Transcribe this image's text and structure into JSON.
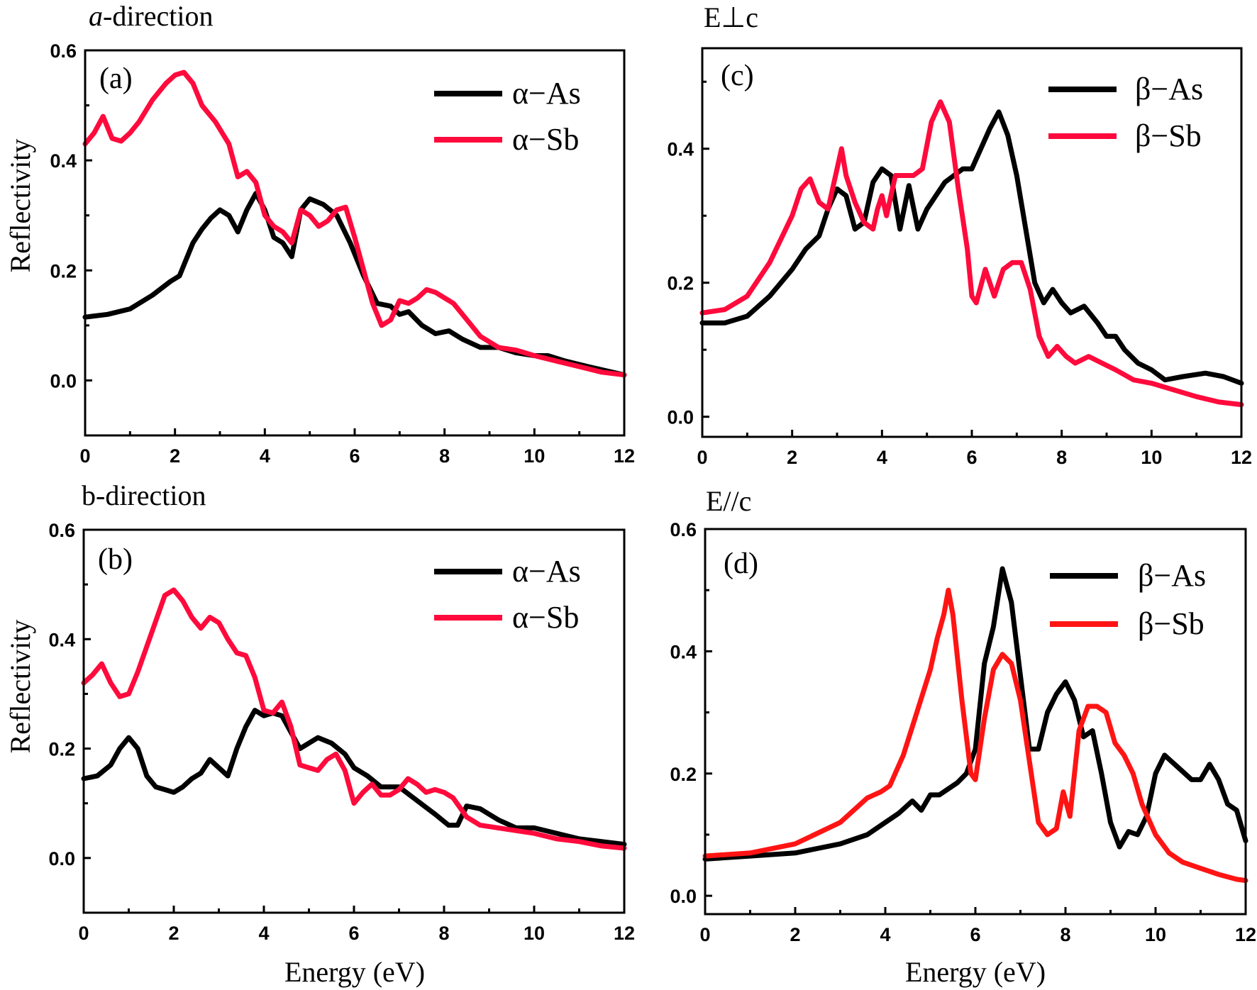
{
  "colors": {
    "black_series": "#000000",
    "red_series": "#ff0a3c",
    "red_series_d": "#ff1414"
  },
  "chart_data": [
    {
      "panel": "a",
      "type": "line",
      "title": "a-direction",
      "title_italic_prefix": "a",
      "title_rest": "-direction",
      "letter": "(a)",
      "xlabel": "",
      "ylabel": "Reflectivity",
      "xlim": [
        0,
        12
      ],
      "ylim": [
        -0.1,
        0.6
      ],
      "xticks": [
        0,
        2,
        4,
        6,
        8,
        10,
        12
      ],
      "yticks": [
        0.0,
        0.2,
        0.4,
        0.6
      ],
      "ytick_labels": [
        "0.0",
        "0.2",
        "0.4",
        "0.6"
      ],
      "legend": [
        "α−As",
        "α−Sb"
      ],
      "series": [
        {
          "name": "α−As",
          "color": "#000000",
          "x": [
            0,
            0.5,
            1,
            1.5,
            1.9,
            2.1,
            2.4,
            2.6,
            2.8,
            3.0,
            3.2,
            3.4,
            3.6,
            3.8,
            4.0,
            4.2,
            4.4,
            4.6,
            4.8,
            5.0,
            5.3,
            5.6,
            5.9,
            6.2,
            6.5,
            6.8,
            7.0,
            7.2,
            7.5,
            7.8,
            8.1,
            8.4,
            8.8,
            9.2,
            9.6,
            10,
            10.3,
            10.7,
            11.2,
            12
          ],
          "y": [
            0.115,
            0.12,
            0.13,
            0.155,
            0.18,
            0.19,
            0.25,
            0.275,
            0.295,
            0.31,
            0.3,
            0.27,
            0.31,
            0.34,
            0.31,
            0.26,
            0.25,
            0.225,
            0.31,
            0.33,
            0.32,
            0.3,
            0.25,
            0.19,
            0.14,
            0.135,
            0.12,
            0.125,
            0.1,
            0.085,
            0.09,
            0.075,
            0.06,
            0.06,
            0.05,
            0.045,
            0.045,
            0.035,
            0.025,
            0.01
          ]
        },
        {
          "name": "α−Sb",
          "color": "#ff0a3c",
          "x": [
            0,
            0.2,
            0.4,
            0.6,
            0.8,
            1.0,
            1.2,
            1.5,
            1.8,
            2.0,
            2.2,
            2.4,
            2.6,
            2.9,
            3.2,
            3.4,
            3.6,
            3.8,
            4.0,
            4.2,
            4.4,
            4.6,
            4.8,
            5.0,
            5.2,
            5.4,
            5.6,
            5.8,
            6.0,
            6.2,
            6.4,
            6.6,
            6.8,
            7.0,
            7.2,
            7.4,
            7.6,
            7.8,
            8.0,
            8.2,
            8.5,
            8.8,
            9.2,
            9.6,
            10,
            10.5,
            11,
            11.5,
            12
          ],
          "y": [
            0.43,
            0.45,
            0.48,
            0.44,
            0.435,
            0.45,
            0.47,
            0.51,
            0.54,
            0.555,
            0.56,
            0.54,
            0.5,
            0.47,
            0.43,
            0.37,
            0.38,
            0.36,
            0.3,
            0.28,
            0.27,
            0.25,
            0.31,
            0.3,
            0.28,
            0.29,
            0.31,
            0.315,
            0.26,
            0.2,
            0.14,
            0.1,
            0.11,
            0.145,
            0.14,
            0.15,
            0.165,
            0.16,
            0.15,
            0.14,
            0.11,
            0.08,
            0.06,
            0.055,
            0.045,
            0.035,
            0.025,
            0.015,
            0.01
          ]
        }
      ]
    },
    {
      "panel": "b",
      "type": "line",
      "title": "b-direction",
      "letter": "(b)",
      "xlabel": "Energy (eV)",
      "ylabel": "Reflectivity",
      "xlim": [
        0,
        12
      ],
      "ylim": [
        -0.1,
        0.6
      ],
      "xticks": [
        0,
        2,
        4,
        6,
        8,
        10,
        12
      ],
      "yticks": [
        0.0,
        0.2,
        0.4,
        0.6
      ],
      "ytick_labels": [
        "0.0",
        "0.2",
        "0.4",
        "0.6"
      ],
      "legend": [
        "α−As",
        "α−Sb"
      ],
      "series": [
        {
          "name": "α−As",
          "color": "#000000",
          "x": [
            0,
            0.3,
            0.6,
            0.8,
            1.0,
            1.2,
            1.4,
            1.6,
            1.8,
            2.0,
            2.2,
            2.4,
            2.6,
            2.8,
            3.0,
            3.2,
            3.4,
            3.6,
            3.8,
            4.0,
            4.2,
            4.4,
            4.6,
            4.8,
            5.0,
            5.2,
            5.5,
            5.8,
            6.0,
            6.3,
            6.6,
            7.0,
            7.4,
            7.8,
            8.1,
            8.3,
            8.5,
            8.8,
            9.2,
            9.6,
            10,
            10.5,
            11,
            11.5,
            12
          ],
          "y": [
            0.145,
            0.15,
            0.17,
            0.2,
            0.22,
            0.2,
            0.15,
            0.13,
            0.125,
            0.12,
            0.13,
            0.145,
            0.155,
            0.18,
            0.165,
            0.15,
            0.2,
            0.24,
            0.27,
            0.26,
            0.265,
            0.26,
            0.23,
            0.2,
            0.21,
            0.22,
            0.21,
            0.19,
            0.165,
            0.15,
            0.13,
            0.13,
            0.105,
            0.08,
            0.06,
            0.06,
            0.095,
            0.09,
            0.07,
            0.055,
            0.055,
            0.045,
            0.035,
            0.03,
            0.025
          ]
        },
        {
          "name": "α−Sb",
          "color": "#ff0a3c",
          "x": [
            0,
            0.2,
            0.4,
            0.6,
            0.8,
            1.0,
            1.2,
            1.5,
            1.8,
            2.0,
            2.2,
            2.4,
            2.6,
            2.8,
            3.0,
            3.2,
            3.4,
            3.6,
            3.8,
            4.0,
            4.2,
            4.4,
            4.6,
            4.8,
            5.0,
            5.2,
            5.4,
            5.6,
            5.8,
            6.0,
            6.2,
            6.4,
            6.6,
            6.8,
            7.0,
            7.2,
            7.4,
            7.6,
            7.8,
            8.0,
            8.2,
            8.5,
            8.8,
            9.2,
            9.6,
            10,
            10.5,
            11,
            11.5,
            12
          ],
          "y": [
            0.32,
            0.335,
            0.355,
            0.32,
            0.295,
            0.3,
            0.34,
            0.41,
            0.48,
            0.49,
            0.47,
            0.44,
            0.42,
            0.44,
            0.43,
            0.4,
            0.375,
            0.37,
            0.33,
            0.27,
            0.265,
            0.285,
            0.24,
            0.17,
            0.165,
            0.16,
            0.18,
            0.19,
            0.16,
            0.1,
            0.12,
            0.135,
            0.115,
            0.115,
            0.125,
            0.145,
            0.135,
            0.12,
            0.125,
            0.12,
            0.11,
            0.075,
            0.06,
            0.055,
            0.05,
            0.045,
            0.035,
            0.03,
            0.022,
            0.018
          ]
        }
      ]
    },
    {
      "panel": "c",
      "type": "line",
      "title": "E⊥c",
      "letter": "(c)",
      "xlabel": "",
      "ylabel": "",
      "xlim": [
        0,
        12
      ],
      "ylim": [
        -0.03,
        0.55
      ],
      "xticks": [
        0,
        2,
        4,
        6,
        8,
        10,
        12
      ],
      "yticks": [
        0.0,
        0.2,
        0.4
      ],
      "ytick_labels": [
        "0.0",
        "0.2",
        "0.4"
      ],
      "legend": [
        "β−As",
        "β−Sb"
      ],
      "series": [
        {
          "name": "β−As",
          "color": "#000000",
          "x": [
            0,
            0.5,
            1,
            1.5,
            2.0,
            2.3,
            2.6,
            2.8,
            3.0,
            3.2,
            3.4,
            3.6,
            3.8,
            4.0,
            4.2,
            4.4,
            4.6,
            4.8,
            5.0,
            5.2,
            5.4,
            5.6,
            5.8,
            6.0,
            6.2,
            6.4,
            6.6,
            6.8,
            7.0,
            7.2,
            7.4,
            7.6,
            7.8,
            8.0,
            8.2,
            8.5,
            8.8,
            9.0,
            9.2,
            9.4,
            9.7,
            10,
            10.3,
            10.7,
            11.2,
            11.6,
            12
          ],
          "y": [
            0.14,
            0.14,
            0.15,
            0.18,
            0.22,
            0.25,
            0.27,
            0.31,
            0.34,
            0.33,
            0.28,
            0.29,
            0.35,
            0.37,
            0.36,
            0.28,
            0.345,
            0.28,
            0.31,
            0.33,
            0.35,
            0.36,
            0.37,
            0.37,
            0.4,
            0.43,
            0.455,
            0.42,
            0.36,
            0.28,
            0.2,
            0.17,
            0.19,
            0.17,
            0.155,
            0.165,
            0.14,
            0.12,
            0.12,
            0.1,
            0.08,
            0.07,
            0.055,
            0.06,
            0.065,
            0.06,
            0.05
          ]
        },
        {
          "name": "β−Sb",
          "color": "#ff0a3c",
          "x": [
            0,
            0.5,
            1,
            1.5,
            2.0,
            2.2,
            2.4,
            2.6,
            2.8,
            3.0,
            3.1,
            3.2,
            3.4,
            3.6,
            3.8,
            3.9,
            4.0,
            4.1,
            4.2,
            4.3,
            4.5,
            4.7,
            4.9,
            5.1,
            5.3,
            5.5,
            5.7,
            5.9,
            6.0,
            6.1,
            6.3,
            6.5,
            6.7,
            6.9,
            7.1,
            7.3,
            7.5,
            7.7,
            7.9,
            8.1,
            8.3,
            8.6,
            8.9,
            9.2,
            9.6,
            10,
            10.5,
            11,
            11.5,
            12
          ],
          "y": [
            0.155,
            0.16,
            0.18,
            0.23,
            0.3,
            0.34,
            0.355,
            0.32,
            0.31,
            0.37,
            0.4,
            0.36,
            0.32,
            0.29,
            0.28,
            0.31,
            0.33,
            0.3,
            0.33,
            0.36,
            0.36,
            0.36,
            0.37,
            0.44,
            0.47,
            0.44,
            0.34,
            0.25,
            0.18,
            0.17,
            0.22,
            0.18,
            0.22,
            0.23,
            0.23,
            0.19,
            0.12,
            0.09,
            0.105,
            0.09,
            0.08,
            0.09,
            0.08,
            0.07,
            0.055,
            0.05,
            0.04,
            0.03,
            0.022,
            0.018
          ]
        }
      ]
    },
    {
      "panel": "d",
      "type": "line",
      "title": "E//c",
      "letter": "(d)",
      "xlabel": "Energy (eV)",
      "ylabel": "",
      "xlim": [
        0,
        12
      ],
      "ylim": [
        -0.03,
        0.6
      ],
      "xticks": [
        0,
        2,
        4,
        6,
        8,
        10,
        12
      ],
      "yticks": [
        0.0,
        0.2,
        0.4,
        0.6
      ],
      "ytick_labels": [
        "0.0",
        "0.2",
        "0.4",
        "0.6"
      ],
      "legend": [
        "β−As",
        "β−Sb"
      ],
      "series": [
        {
          "name": "β−As",
          "color": "#000000",
          "x": [
            0,
            1,
            2,
            3,
            3.6,
            4.0,
            4.3,
            4.6,
            4.8,
            5.0,
            5.2,
            5.4,
            5.6,
            5.8,
            6.0,
            6.2,
            6.4,
            6.6,
            6.8,
            7.0,
            7.2,
            7.4,
            7.6,
            7.8,
            8.0,
            8.2,
            8.4,
            8.6,
            8.8,
            9.0,
            9.2,
            9.4,
            9.6,
            9.8,
            10.0,
            10.2,
            10.5,
            10.8,
            11.0,
            11.2,
            11.4,
            11.6,
            11.8,
            12
          ],
          "y": [
            0.06,
            0.065,
            0.07,
            0.085,
            0.1,
            0.12,
            0.135,
            0.155,
            0.14,
            0.165,
            0.165,
            0.175,
            0.185,
            0.2,
            0.24,
            0.38,
            0.44,
            0.535,
            0.48,
            0.36,
            0.24,
            0.24,
            0.3,
            0.33,
            0.35,
            0.32,
            0.26,
            0.27,
            0.2,
            0.12,
            0.08,
            0.105,
            0.1,
            0.13,
            0.2,
            0.23,
            0.21,
            0.19,
            0.19,
            0.215,
            0.19,
            0.15,
            0.14,
            0.09
          ]
        },
        {
          "name": "β−Sb",
          "color": "#ff1414",
          "x": [
            0,
            1,
            2,
            3,
            3.6,
            3.9,
            4.1,
            4.4,
            4.7,
            5.0,
            5.15,
            5.3,
            5.4,
            5.5,
            5.7,
            5.9,
            6.0,
            6.2,
            6.4,
            6.6,
            6.8,
            7.0,
            7.2,
            7.4,
            7.6,
            7.8,
            7.95,
            8.1,
            8.3,
            8.5,
            8.7,
            8.9,
            9.1,
            9.3,
            9.5,
            9.7,
            10.0,
            10.3,
            10.6,
            11.0,
            11.4,
            11.8,
            12
          ],
          "y": [
            0.065,
            0.07,
            0.085,
            0.12,
            0.16,
            0.17,
            0.18,
            0.23,
            0.3,
            0.37,
            0.42,
            0.46,
            0.5,
            0.46,
            0.32,
            0.2,
            0.19,
            0.29,
            0.37,
            0.395,
            0.38,
            0.32,
            0.22,
            0.12,
            0.1,
            0.11,
            0.17,
            0.13,
            0.27,
            0.31,
            0.31,
            0.3,
            0.25,
            0.23,
            0.2,
            0.15,
            0.1,
            0.07,
            0.055,
            0.045,
            0.035,
            0.027,
            0.025
          ]
        }
      ]
    }
  ]
}
